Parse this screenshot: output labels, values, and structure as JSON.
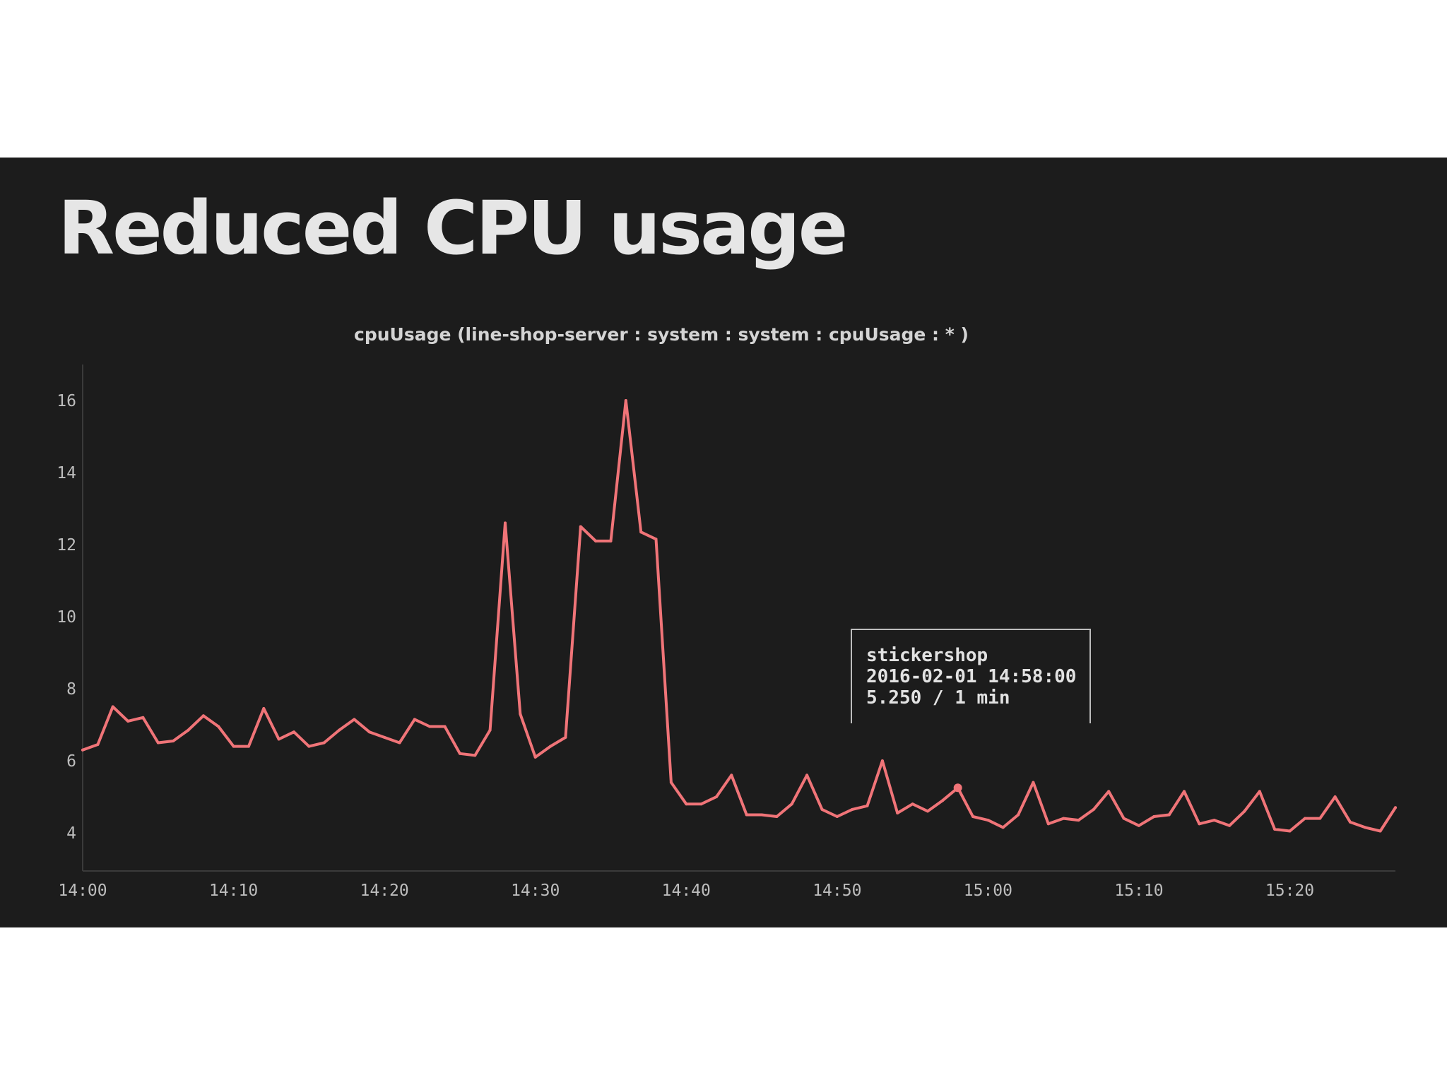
{
  "slide": {
    "title": "Reduced CPU usage"
  },
  "colors": {
    "background": "#1c1c1c",
    "series_line": "#f07478",
    "title_text": "#e6e6e6",
    "axis_text": "#bdbdbd",
    "tooltip_border": "#bdbdbd"
  },
  "chart_data": {
    "type": "line",
    "title": "cpuUsage (line-shop-server : system : system : cpuUsage : * )",
    "xlabel": "",
    "ylabel": "",
    "x_tick_labels": [
      "14:00",
      "14:10",
      "14:20",
      "14:30",
      "14:40",
      "14:50",
      "15:00",
      "15:10",
      "15:20"
    ],
    "y_ticks": [
      4,
      6,
      8,
      10,
      12,
      14,
      16
    ],
    "xlim": [
      "14:00",
      "15:27"
    ],
    "ylim": [
      3,
      17
    ],
    "grid": false,
    "series": [
      {
        "points": [
          [
            "14:00",
            6.3
          ],
          [
            "14:01",
            6.45
          ],
          [
            "14:02",
            7.5
          ],
          [
            "14:03",
            7.1
          ],
          [
            "14:04",
            7.2
          ],
          [
            "14:05",
            6.5
          ],
          [
            "14:06",
            6.55
          ],
          [
            "14:07",
            6.85
          ],
          [
            "14:08",
            7.25
          ],
          [
            "14:09",
            6.95
          ],
          [
            "14:10",
            6.4
          ],
          [
            "14:11",
            6.4
          ],
          [
            "14:12",
            7.45
          ],
          [
            "14:13",
            6.6
          ],
          [
            "14:14",
            6.8
          ],
          [
            "14:15",
            6.4
          ],
          [
            "14:16",
            6.5
          ],
          [
            "14:17",
            6.85
          ],
          [
            "14:18",
            7.15
          ],
          [
            "14:19",
            6.8
          ],
          [
            "14:20",
            6.65
          ],
          [
            "14:21",
            6.5
          ],
          [
            "14:22",
            7.15
          ],
          [
            "14:23",
            6.95
          ],
          [
            "14:24",
            6.95
          ],
          [
            "14:25",
            6.2
          ],
          [
            "14:26",
            6.15
          ],
          [
            "14:27",
            6.85
          ],
          [
            "14:28",
            12.6
          ],
          [
            "14:29",
            7.3
          ],
          [
            "14:30",
            6.1
          ],
          [
            "14:31",
            6.4
          ],
          [
            "14:32",
            6.65
          ],
          [
            "14:33",
            12.5
          ],
          [
            "14:34",
            12.1
          ],
          [
            "14:35",
            12.1
          ],
          [
            "14:36",
            16.0
          ],
          [
            "14:37",
            12.35
          ],
          [
            "14:38",
            12.15
          ],
          [
            "14:39",
            5.4
          ],
          [
            "14:40",
            4.8
          ],
          [
            "14:41",
            4.8
          ],
          [
            "14:42",
            5.0
          ],
          [
            "14:43",
            5.6
          ],
          [
            "14:44",
            4.5
          ],
          [
            "14:45",
            4.5
          ],
          [
            "14:46",
            4.45
          ],
          [
            "14:47",
            4.8
          ],
          [
            "14:48",
            5.6
          ],
          [
            "14:49",
            4.65
          ],
          [
            "14:50",
            4.45
          ],
          [
            "14:51",
            4.65
          ],
          [
            "14:52",
            4.75
          ],
          [
            "14:53",
            6.0
          ],
          [
            "14:54",
            4.55
          ],
          [
            "14:55",
            4.8
          ],
          [
            "14:56",
            4.6
          ],
          [
            "14:57",
            4.9
          ],
          [
            "14:58",
            5.25
          ],
          [
            "14:59",
            4.45
          ],
          [
            "15:00",
            4.35
          ],
          [
            "15:01",
            4.15
          ],
          [
            "15:02",
            4.5
          ],
          [
            "15:03",
            5.4
          ],
          [
            "15:04",
            4.25
          ],
          [
            "15:05",
            4.4
          ],
          [
            "15:06",
            4.35
          ],
          [
            "15:07",
            4.65
          ],
          [
            "15:08",
            5.15
          ],
          [
            "15:09",
            4.4
          ],
          [
            "15:10",
            4.2
          ],
          [
            "15:11",
            4.45
          ],
          [
            "15:12",
            4.5
          ],
          [
            "15:13",
            5.15
          ],
          [
            "15:14",
            4.25
          ],
          [
            "15:15",
            4.35
          ],
          [
            "15:16",
            4.2
          ],
          [
            "15:17",
            4.6
          ],
          [
            "15:18",
            5.15
          ],
          [
            "15:19",
            4.1
          ],
          [
            "15:20",
            4.05
          ],
          [
            "15:21",
            4.4
          ],
          [
            "15:22",
            4.4
          ],
          [
            "15:23",
            5.0
          ],
          [
            "15:24",
            4.3
          ],
          [
            "15:25",
            4.15
          ],
          [
            "15:26",
            4.05
          ],
          [
            "15:27",
            4.7
          ]
        ]
      }
    ],
    "tooltip": {
      "series_name": "stickershop",
      "timestamp": "2016-02-01 14:58:00",
      "value_text": "5.250 / 1 min",
      "x": "14:58",
      "y": 5.25
    }
  }
}
